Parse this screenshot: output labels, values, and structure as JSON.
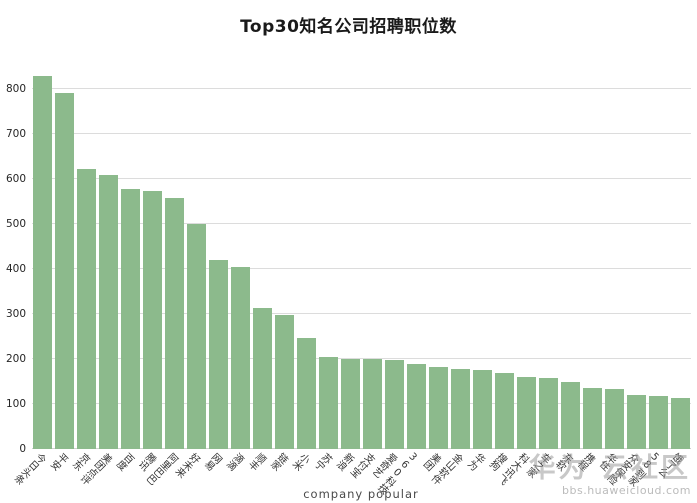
{
  "title": "Top30知名公司招聘职位数",
  "chart_data": {
    "type": "bar",
    "title": "Top30知名公司招聘职位数",
    "xlabel": "company popular",
    "ylabel": "",
    "categories": [
      "今日头条",
      "平安",
      "京东",
      "美团点评",
      "百度",
      "腾讯",
      "阿里巴巴",
      "好未来",
      "网易",
      "滴滴",
      "顺丰",
      "链家",
      "小米",
      "苏宁",
      "新浪",
      "支付宝",
      "爱奇艺",
      "360科技",
      "美团",
      "金山软件",
      "华为",
      "搜狗",
      "科大讯飞",
      "车之家",
      "东软",
      "携程",
      "华住",
      "众安保险",
      "58到家",
      "饿了么"
    ],
    "values": [
      828,
      791,
      623,
      608,
      578,
      573,
      557,
      500,
      420,
      405,
      313,
      297,
      247,
      204,
      201,
      199,
      197,
      189,
      183,
      178,
      175,
      169,
      160,
      158,
      148,
      136,
      134,
      121,
      117,
      113
    ],
    "ylim": [
      0,
      842
    ],
    "yticks": [
      0,
      100,
      200,
      300,
      400,
      500,
      600,
      700,
      800
    ],
    "grid": true,
    "legend": null,
    "bar_color": "#8cba8c",
    "grid_color": "#dcdcdc"
  },
  "watermark": {
    "line1": "华为 云社区",
    "line2": "bbs.huaweicloud.com"
  }
}
